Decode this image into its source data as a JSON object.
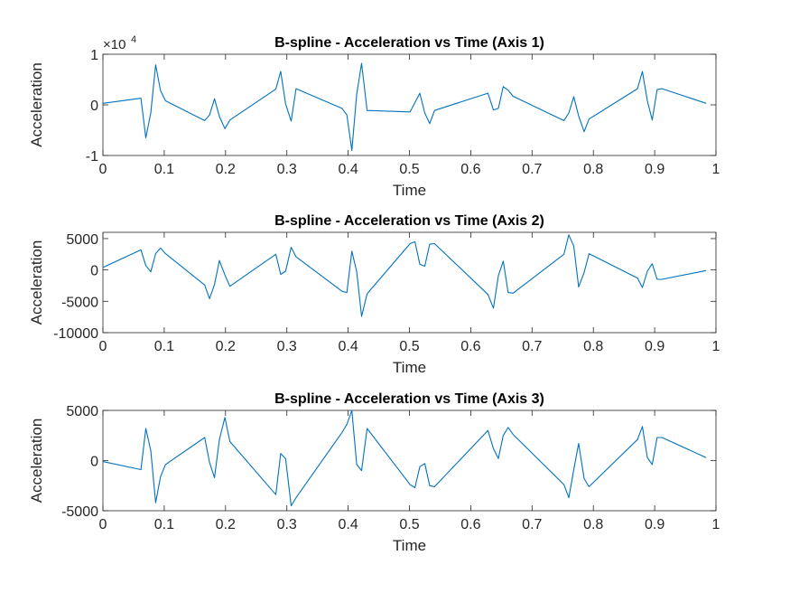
{
  "chart_data": [
    {
      "type": "line",
      "title": "B-spline - Acceleration vs Time (Axis 1)",
      "xlabel": "Time",
      "ylabel": "Acceleration",
      "exponent_label": "×10",
      "exponent_power": "4",
      "xlim": [
        0,
        1
      ],
      "ylim": [
        -10000,
        10000
      ],
      "xticks": [
        0,
        0.1,
        0.2,
        0.3,
        0.4,
        0.5,
        0.6,
        0.7,
        0.8,
        0.9,
        1
      ],
      "xtick_labels": [
        "0",
        "0.1",
        "0.2",
        "0.3",
        "0.4",
        "0.5",
        "0.6",
        "0.7",
        "0.8",
        "0.9",
        "1"
      ],
      "yticks": [
        -10000,
        0,
        10000
      ],
      "ytick_labels": [
        "-1",
        "0",
        "1"
      ],
      "grid": false,
      "series": [
        {
          "color": "#0072BD",
          "points": [
            [
              0,
              300
            ],
            [
              0.062,
              1300
            ],
            [
              0.07,
              -6500
            ],
            [
              0.078,
              -1600
            ],
            [
              0.086,
              7900
            ],
            [
              0.094,
              2800
            ],
            [
              0.102,
              800
            ],
            [
              0.166,
              -3100
            ],
            [
              0.174,
              -2000
            ],
            [
              0.182,
              1200
            ],
            [
              0.19,
              -2300
            ],
            [
              0.199,
              -4700
            ],
            [
              0.207,
              -3000
            ],
            [
              0.282,
              3100
            ],
            [
              0.29,
              6600
            ],
            [
              0.298,
              200
            ],
            [
              0.307,
              -3200
            ],
            [
              0.315,
              3200
            ],
            [
              0.39,
              -700
            ],
            [
              0.398,
              -2000
            ],
            [
              0.406,
              -9000
            ],
            [
              0.414,
              2100
            ],
            [
              0.422,
              8200
            ],
            [
              0.431,
              -1100
            ],
            [
              0.501,
              -1400
            ],
            [
              0.517,
              2300
            ],
            [
              0.525,
              -1600
            ],
            [
              0.533,
              -3700
            ],
            [
              0.541,
              -1100
            ],
            [
              0.628,
              2300
            ],
            [
              0.637,
              -1000
            ],
            [
              0.645,
              -700
            ],
            [
              0.653,
              3600
            ],
            [
              0.661,
              2900
            ],
            [
              0.669,
              1700
            ],
            [
              0.752,
              -3100
            ],
            [
              0.76,
              -1600
            ],
            [
              0.768,
              1600
            ],
            [
              0.776,
              -2200
            ],
            [
              0.785,
              -5300
            ],
            [
              0.793,
              -2800
            ],
            [
              0.872,
              3200
            ],
            [
              0.88,
              6600
            ],
            [
              0.888,
              800
            ],
            [
              0.896,
              -3000
            ],
            [
              0.904,
              3000
            ],
            [
              0.912,
              3200
            ],
            [
              0.984,
              300
            ]
          ]
        }
      ]
    },
    {
      "type": "line",
      "title": "B-spline - Acceleration vs Time (Axis 2)",
      "xlabel": "Time",
      "ylabel": "Acceleration",
      "xlim": [
        0,
        1
      ],
      "ylim": [
        -10000,
        6000
      ],
      "xticks": [
        0,
        0.1,
        0.2,
        0.3,
        0.4,
        0.5,
        0.6,
        0.7,
        0.8,
        0.9,
        1
      ],
      "xtick_labels": [
        "0",
        "0.1",
        "0.2",
        "0.3",
        "0.4",
        "0.5",
        "0.6",
        "0.7",
        "0.8",
        "0.9",
        "1"
      ],
      "yticks": [
        -10000,
        -5000,
        0,
        5000
      ],
      "ytick_labels": [
        "-10000",
        "-5000",
        "0",
        "5000"
      ],
      "grid": false,
      "series": [
        {
          "color": "#0072BD",
          "points": [
            [
              0,
              400
            ],
            [
              0.062,
              3200
            ],
            [
              0.07,
              700
            ],
            [
              0.078,
              -300
            ],
            [
              0.086,
              2600
            ],
            [
              0.094,
              3500
            ],
            [
              0.102,
              2600
            ],
            [
              0.166,
              -2400
            ],
            [
              0.174,
              -4600
            ],
            [
              0.182,
              -2300
            ],
            [
              0.19,
              1500
            ],
            [
              0.199,
              -800
            ],
            [
              0.207,
              -2600
            ],
            [
              0.282,
              2500
            ],
            [
              0.29,
              -700
            ],
            [
              0.298,
              -200
            ],
            [
              0.307,
              3600
            ],
            [
              0.315,
              2100
            ],
            [
              0.39,
              -3400
            ],
            [
              0.398,
              -3600
            ],
            [
              0.406,
              3000
            ],
            [
              0.414,
              -300
            ],
            [
              0.422,
              -7400
            ],
            [
              0.431,
              -3800
            ],
            [
              0.501,
              4200
            ],
            [
              0.509,
              4500
            ],
            [
              0.517,
              900
            ],
            [
              0.525,
              600
            ],
            [
              0.533,
              4100
            ],
            [
              0.541,
              4200
            ],
            [
              0.628,
              -3900
            ],
            [
              0.637,
              -6100
            ],
            [
              0.645,
              -900
            ],
            [
              0.653,
              1400
            ],
            [
              0.661,
              -3600
            ],
            [
              0.669,
              -3700
            ],
            [
              0.752,
              2500
            ],
            [
              0.76,
              5600
            ],
            [
              0.768,
              3800
            ],
            [
              0.776,
              -2700
            ],
            [
              0.785,
              -400
            ],
            [
              0.793,
              2600
            ],
            [
              0.872,
              -1300
            ],
            [
              0.88,
              -2800
            ],
            [
              0.888,
              -200
            ],
            [
              0.896,
              1000
            ],
            [
              0.904,
              -1500
            ],
            [
              0.912,
              -1500
            ],
            [
              0.984,
              -100
            ]
          ]
        }
      ]
    },
    {
      "type": "line",
      "title": "B-spline - Acceleration vs Time (Axis 3)",
      "xlabel": "Time",
      "ylabel": "Acceleration",
      "xlim": [
        0,
        1
      ],
      "ylim": [
        -5000,
        5000
      ],
      "xticks": [
        0,
        0.1,
        0.2,
        0.3,
        0.4,
        0.5,
        0.6,
        0.7,
        0.8,
        0.9,
        1
      ],
      "xtick_labels": [
        "0",
        "0.1",
        "0.2",
        "0.3",
        "0.4",
        "0.5",
        "0.6",
        "0.7",
        "0.8",
        "0.9",
        "1"
      ],
      "yticks": [
        -5000,
        0,
        5000
      ],
      "ytick_labels": [
        "-5000",
        "0",
        "5000"
      ],
      "grid": false,
      "series": [
        {
          "color": "#0072BD",
          "points": [
            [
              0,
              -100
            ],
            [
              0.062,
              -900
            ],
            [
              0.07,
              3200
            ],
            [
              0.078,
              1000
            ],
            [
              0.086,
              -4200
            ],
            [
              0.094,
              -1600
            ],
            [
              0.102,
              -400
            ],
            [
              0.166,
              2300
            ],
            [
              0.174,
              -200
            ],
            [
              0.182,
              -1700
            ],
            [
              0.19,
              2100
            ],
            [
              0.199,
              4300
            ],
            [
              0.207,
              1900
            ],
            [
              0.282,
              -3400
            ],
            [
              0.29,
              700
            ],
            [
              0.298,
              200
            ],
            [
              0.307,
              -4500
            ],
            [
              0.315,
              -3700
            ],
            [
              0.39,
              2800
            ],
            [
              0.398,
              3600
            ],
            [
              0.406,
              5000
            ],
            [
              0.414,
              -400
            ],
            [
              0.422,
              -1000
            ],
            [
              0.431,
              3200
            ],
            [
              0.501,
              -2400
            ],
            [
              0.509,
              -2700
            ],
            [
              0.517,
              -600
            ],
            [
              0.525,
              -300
            ],
            [
              0.533,
              -2500
            ],
            [
              0.541,
              -2600
            ],
            [
              0.628,
              3000
            ],
            [
              0.637,
              1200
            ],
            [
              0.645,
              200
            ],
            [
              0.653,
              2500
            ],
            [
              0.661,
              3300
            ],
            [
              0.669,
              2600
            ],
            [
              0.752,
              -2400
            ],
            [
              0.76,
              -3700
            ],
            [
              0.768,
              -900
            ],
            [
              0.776,
              1700
            ],
            [
              0.785,
              -1800
            ],
            [
              0.793,
              -2600
            ],
            [
              0.872,
              2100
            ],
            [
              0.88,
              3400
            ],
            [
              0.888,
              300
            ],
            [
              0.896,
              -400
            ],
            [
              0.904,
              2300
            ],
            [
              0.912,
              2300
            ],
            [
              0.984,
              300
            ]
          ]
        }
      ]
    }
  ]
}
